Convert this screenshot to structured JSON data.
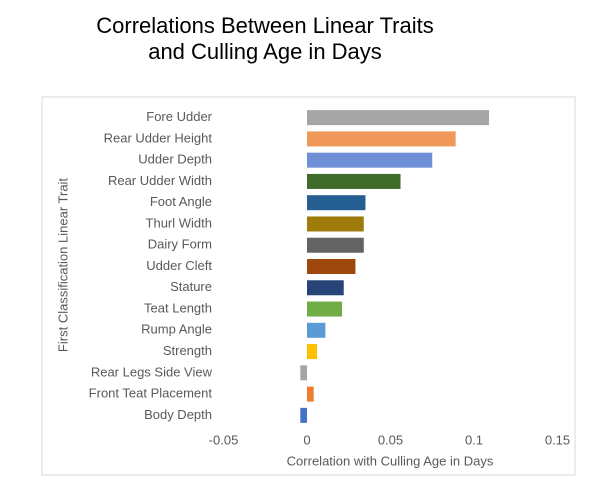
{
  "chart_data": {
    "type": "barh",
    "title": [
      "Correlations Between Linear Traits",
      "and Culling Age in Days"
    ],
    "xlabel": "Correlation with Culling Age in Days",
    "ylabel": "First Classification Linear Trait",
    "categories": [
      "Fore Udder",
      "Rear Udder Height",
      "Udder Depth",
      "Rear Udder Width",
      "Foot Angle",
      "Thurl Width",
      "Dairy Form",
      "Udder Cleft",
      "Stature",
      "Teat Length",
      "Rump Angle",
      "Strength",
      "Rear Legs Side View",
      "Front Teat Placement",
      "Body Depth"
    ],
    "values": [
      0.109,
      0.089,
      0.075,
      0.056,
      0.035,
      0.034,
      0.034,
      0.029,
      0.022,
      0.021,
      0.011,
      0.006,
      -0.004,
      0.004,
      -0.004
    ],
    "colors": [
      "#a5a5a5",
      "#f0975a",
      "#6f8fd6",
      "#3f6b2b",
      "#255e91",
      "#9e7b0a",
      "#636363",
      "#9e480e",
      "#264478",
      "#70ad47",
      "#5b9bd5",
      "#ffc000",
      "#a5a5a5",
      "#ed7d31",
      "#4472c4"
    ],
    "xlim": [
      -0.05,
      0.15
    ],
    "xticks": [
      -0.05,
      0,
      0.05,
      0.1,
      0.15
    ],
    "grid": false
  }
}
